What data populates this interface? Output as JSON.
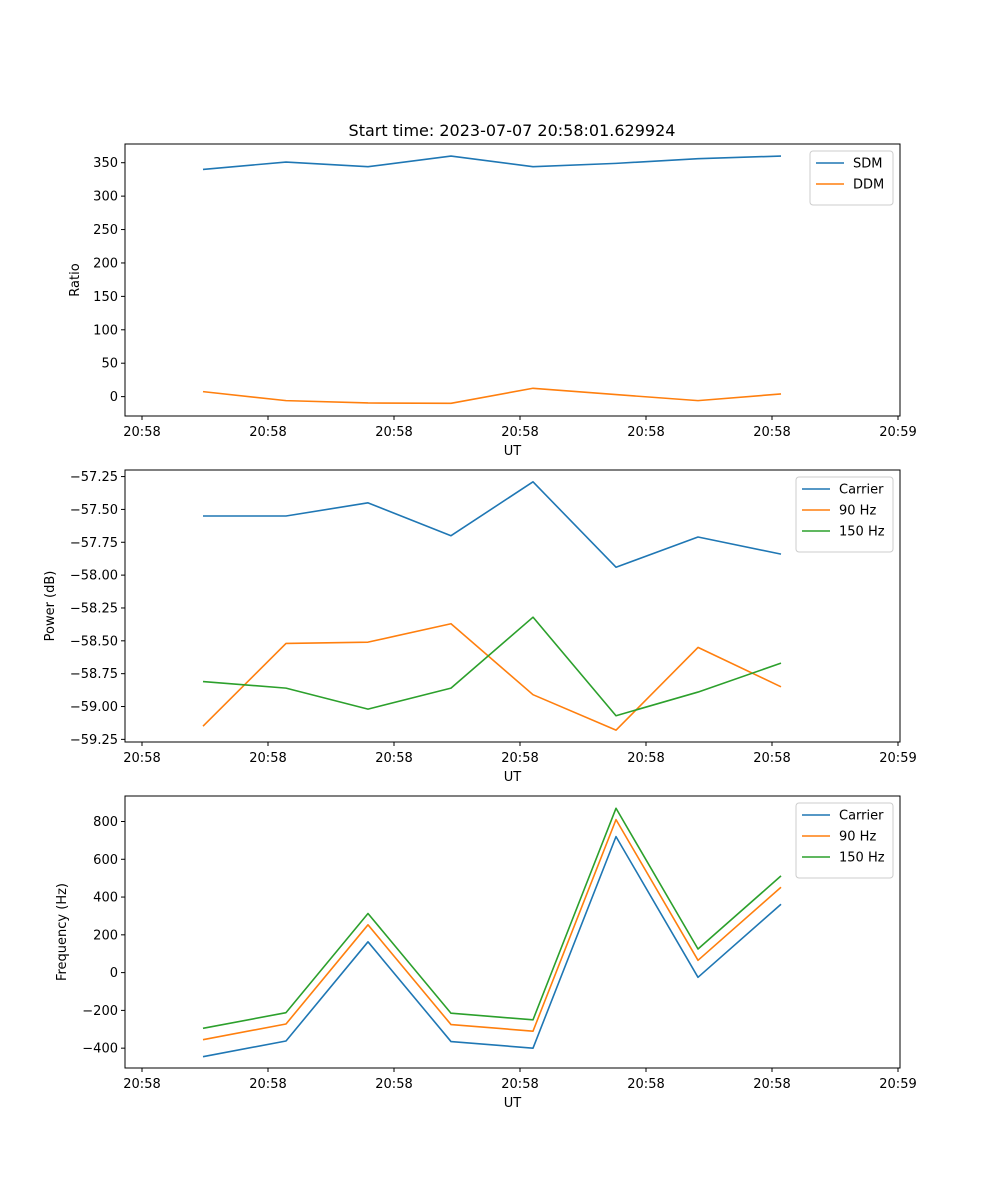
{
  "figure_title": "Start time: 2023-07-07 20:58:01.629924",
  "chart_data": [
    {
      "type": "line",
      "title": "Start time: 2023-07-07 20:58:01.629924",
      "xlabel": "UT",
      "ylabel": "Ratio",
      "x_ticks": [
        "20:58",
        "20:58",
        "20:58",
        "20:58",
        "20:58",
        "20:58",
        "20:58"
      ],
      "x_ticks_last": "20:59",
      "yticks": [
        0,
        50,
        100,
        150,
        200,
        250,
        300,
        350
      ],
      "ylim": [
        -29,
        378
      ],
      "legend_position": "top-right",
      "grid": false,
      "series": [
        {
          "name": "SDM",
          "color": "#1f77b4",
          "values": [
            340,
            351,
            344,
            360,
            344,
            349,
            356,
            360
          ]
        },
        {
          "name": "DDM",
          "color": "#ff7f0e",
          "values": [
            7.5,
            -6,
            -9.5,
            -10,
            12.5,
            3,
            -6,
            4
          ]
        }
      ]
    },
    {
      "type": "line",
      "xlabel": "UT",
      "ylabel": "Power (dB)",
      "x_ticks": [
        "20:58",
        "20:58",
        "20:58",
        "20:58",
        "20:58",
        "20:58",
        "20:58"
      ],
      "x_ticks_last": "20:59",
      "yticks": [
        -57.25,
        -57.5,
        -57.75,
        -58.0,
        -58.25,
        -58.5,
        -58.75,
        -59.0,
        -59.25
      ],
      "ytick_labels": [
        "−57.25",
        "−57.50",
        "−57.75",
        "−58.00",
        "−58.25",
        "−58.50",
        "−58.75",
        "−59.00",
        "−59.25"
      ],
      "ylim": [
        -59.27,
        -57.2
      ],
      "legend_position": "top-right",
      "grid": false,
      "series": [
        {
          "name": "Carrier",
          "color": "#1f77b4",
          "values": [
            -57.55,
            -57.55,
            -57.45,
            -57.7,
            -57.29,
            -57.94,
            -57.71,
            -57.84
          ]
        },
        {
          "name": "90 Hz",
          "color": "#ff7f0e",
          "values": [
            -59.15,
            -58.52,
            -58.51,
            -58.37,
            -58.91,
            -59.18,
            -58.55,
            -58.85
          ]
        },
        {
          "name": "150 Hz",
          "color": "#2ca02c",
          "values": [
            -58.81,
            -58.86,
            -59.02,
            -58.86,
            -58.32,
            -59.07,
            -58.89,
            -58.67
          ]
        }
      ]
    },
    {
      "type": "line",
      "xlabel": "UT",
      "ylabel": "Frequency (Hz)",
      "x_ticks": [
        "20:58",
        "20:58",
        "20:58",
        "20:58",
        "20:58",
        "20:58",
        "20:58"
      ],
      "x_ticks_last": "20:59",
      "yticks": [
        -400,
        -200,
        0,
        200,
        400,
        600,
        800
      ],
      "ytick_labels": [
        "−400",
        "−200",
        "0",
        "200",
        "400",
        "600",
        "800"
      ],
      "ylim": [
        -505,
        935
      ],
      "legend_position": "top-right",
      "grid": false,
      "series": [
        {
          "name": "Carrier",
          "color": "#1f77b4",
          "values": [
            -445,
            -362,
            163,
            -365,
            -400,
            720,
            -25,
            362
          ]
        },
        {
          "name": "90 Hz",
          "color": "#ff7f0e",
          "values": [
            -355,
            -272,
            253,
            -275,
            -310,
            810,
            65,
            452
          ]
        },
        {
          "name": "150 Hz",
          "color": "#2ca02c",
          "values": [
            -295,
            -212,
            313,
            -215,
            -250,
            870,
            125,
            512
          ]
        }
      ]
    }
  ]
}
